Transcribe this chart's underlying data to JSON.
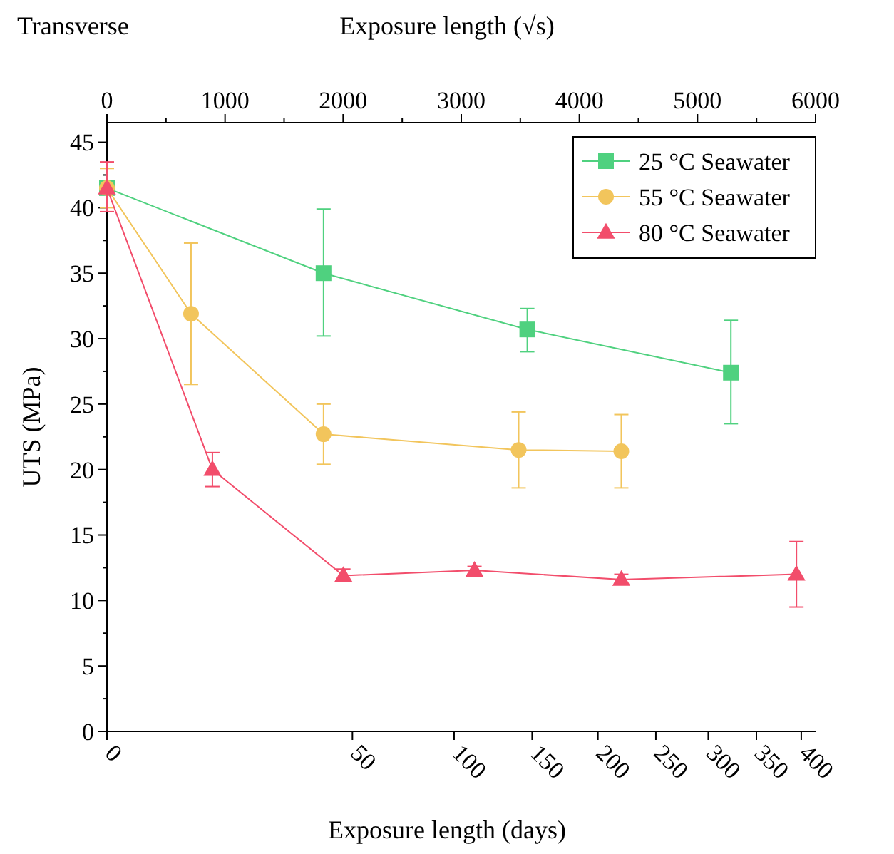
{
  "chart_data": {
    "type": "line",
    "xlabel": "Exposure length (√s)",
    "x2label": "Exposure length (days)",
    "ylabel": "UTS (MPa)",
    "annotations": [
      "Transverse",
      "0",
      "50",
      "100",
      "150",
      "200",
      "250",
      "300",
      "350",
      "400"
    ],
    "xlim": [
      0,
      6000
    ],
    "xticks": [
      0,
      1000,
      2000,
      3000,
      4000,
      5000,
      6000
    ],
    "ylim": [
      0,
      46.5
    ],
    "yticks": [
      0,
      5,
      10,
      15,
      20,
      25,
      30,
      35,
      40,
      45
    ],
    "legend": "top right",
    "grid": false,
    "series": [
      {
        "name": "25 °C Seawater",
        "color": "#4fd17f",
        "marker": "square",
        "x": [
          0,
          1834,
          3559,
          5283
        ],
        "values": [
          41.5,
          35,
          30.7,
          27.4
        ],
        "errors": [
          null,
          [
            30.2,
            39.9
          ],
          [
            29,
            32.3
          ],
          [
            23.5,
            31.4
          ]
        ]
      },
      {
        "name": "55 °C Seawater",
        "color": "#f2c55c",
        "marker": "circle",
        "x": [
          0,
          712,
          1834,
          3486,
          4355
        ],
        "values": [
          41.5,
          31.9,
          22.7,
          21.5,
          21.4
        ],
        "errors": [
          [
            40,
            43
          ],
          [
            26.5,
            37.3
          ],
          [
            20.4,
            25
          ],
          [
            18.6,
            24.4
          ],
          [
            18.6,
            24.2
          ]
        ]
      },
      {
        "name": "80 °C Seawater",
        "color": "#f24d6b",
        "marker": "triangle",
        "x": [
          0,
          893,
          2002,
          3112,
          4355,
          5838
        ],
        "values": [
          41.5,
          20,
          11.9,
          12.3,
          11.6,
          12
        ],
        "errors": [
          [
            39.7,
            43.5
          ],
          [
            18.7,
            21.3
          ],
          [
            11.5,
            12.4
          ],
          [
            12,
            12.6
          ],
          [
            11.3,
            12
          ],
          [
            9.5,
            14.5
          ]
        ]
      }
    ]
  }
}
